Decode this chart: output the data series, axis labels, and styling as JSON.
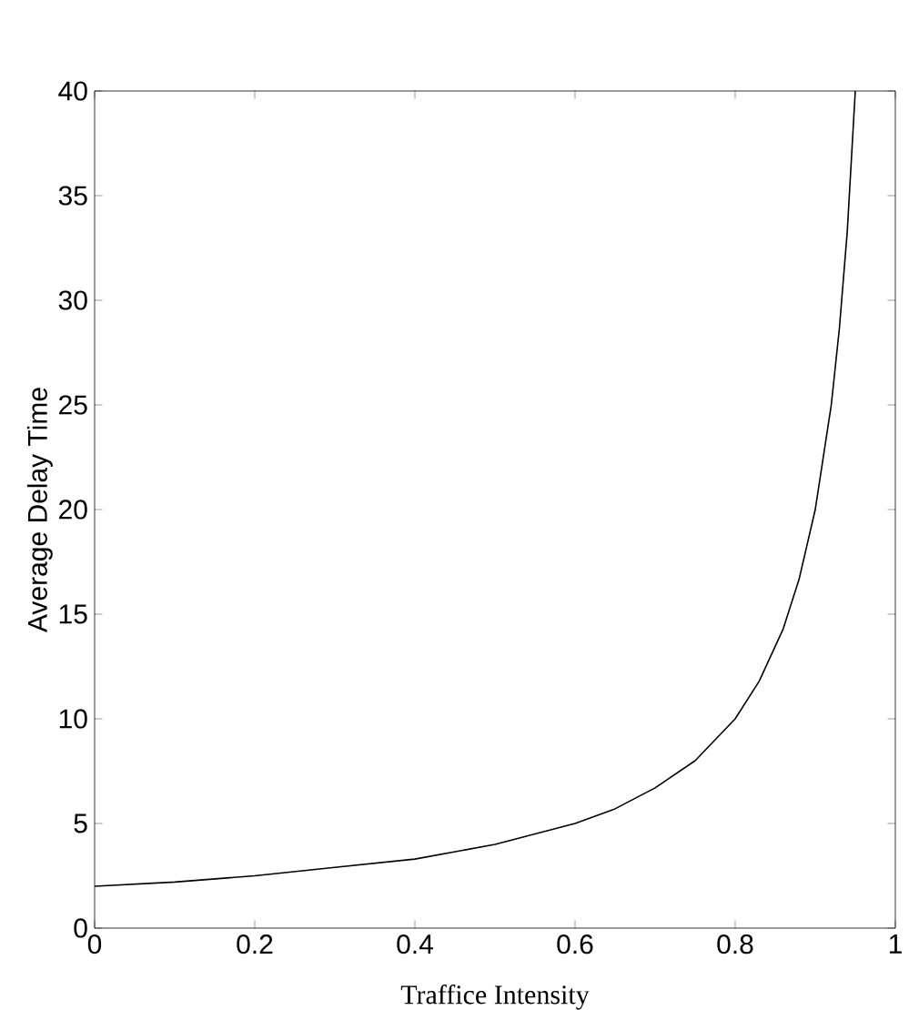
{
  "chart_data": {
    "type": "line",
    "xlabel": "Traffice Intensity",
    "ylabel": "Average Delay Time",
    "x": [
      0,
      0.1,
      0.2,
      0.3,
      0.4,
      0.5,
      0.6,
      0.65,
      0.7,
      0.75,
      0.8,
      0.83,
      0.86,
      0.88,
      0.9,
      0.92,
      0.93,
      0.94,
      0.95
    ],
    "series": [
      {
        "color": "#000000",
        "values": [
          2,
          2.2,
          2.5,
          2.9,
          3.3,
          4,
          5,
          5.7,
          6.7,
          8,
          10,
          11.8,
          14.3,
          16.7,
          20,
          25,
          28.6,
          33.3,
          40
        ]
      }
    ],
    "xlim": [
      0,
      1
    ],
    "ylim": [
      0,
      40
    ],
    "xticks": [
      0,
      0.2,
      0.4,
      0.6,
      0.8,
      1
    ],
    "yticks": [
      0,
      5,
      10,
      15,
      20,
      25,
      30,
      35,
      40
    ],
    "grid": false,
    "marker": "none",
    "line_style": "solid"
  }
}
